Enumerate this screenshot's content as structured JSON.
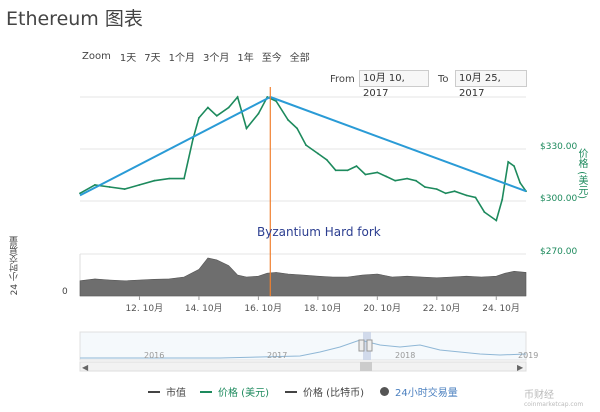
{
  "title": "Ethereum 图表",
  "zoom": {
    "label": "Zoom",
    "buttons": [
      "1天",
      "7天",
      "1个月",
      "3个月",
      "1年",
      "至今",
      "全部"
    ]
  },
  "range": {
    "from_label": "From",
    "from_value": "10月 10, 2017",
    "to_label": "To",
    "to_value": "10月 25, 2017"
  },
  "axes": {
    "price_title": "价格 (美元)",
    "volume_title": "24 小时交易量",
    "volume_zero": "0",
    "price_ticks": [
      "$330.00",
      "$300.00",
      "$270.00"
    ],
    "date_ticks": [
      "12. 10月",
      "14. 10月",
      "16. 10月",
      "18. 10月",
      "20. 10月",
      "22. 10月",
      "24. 10月"
    ]
  },
  "annotation": "Byzantium Hard fork",
  "navigator": {
    "year_labels": [
      "2016",
      "2017",
      "2018",
      "2019"
    ]
  },
  "legend": [
    {
      "icon": "line-icon",
      "label": "市值"
    },
    {
      "icon": "line-icon",
      "label": "价格 (美元)",
      "color": "#1d8a5d"
    },
    {
      "icon": "line-icon",
      "label": "价格 (比特币)"
    },
    {
      "icon": "circle-icon",
      "label": "24小时交易量",
      "color": "#4a7fbf"
    }
  ],
  "watermark": {
    "main": "币财经",
    "sub": "coinmarketcap.com"
  },
  "colors": {
    "price_line": "#1d8a5d",
    "trend_line": "#2a9bd6",
    "fork_line": "#f08030",
    "volume_fill": "#6e6e6e",
    "annotation_text": "#2c3e90"
  },
  "chart_data": {
    "type": "line",
    "x_unit": "date (Oct 2017)",
    "series": [
      {
        "name": "价格 (美元)",
        "x": [
          10.0,
          10.5,
          11.0,
          11.5,
          12.0,
          12.5,
          13.0,
          13.5,
          13.8,
          14.0,
          14.3,
          14.6,
          15.0,
          15.3,
          15.6,
          16.0,
          16.3,
          16.6,
          17.0,
          17.3,
          17.6,
          18.0,
          18.3,
          18.6,
          19.0,
          19.3,
          19.6,
          20.0,
          20.3,
          20.6,
          21.0,
          21.3,
          21.6,
          22.0,
          22.3,
          22.6,
          23.0,
          23.3,
          23.6,
          24.0,
          24.2,
          24.4,
          24.6,
          24.8,
          25.0
        ],
        "values": [
          299,
          303,
          302,
          301,
          303,
          305,
          306,
          306,
          325,
          335,
          340,
          336,
          340,
          345,
          330,
          337,
          345,
          343,
          334,
          330,
          322,
          318,
          315,
          310,
          310,
          312,
          308,
          309,
          307,
          305,
          306,
          305,
          302,
          301,
          299,
          300,
          298,
          297,
          290,
          286,
          296,
          314,
          312,
          304,
          300
        ]
      },
      {
        "name": "24小时交易量",
        "x": [
          10.0,
          10.5,
          11.0,
          11.5,
          12.0,
          12.5,
          13.0,
          13.5,
          14.0,
          14.3,
          14.6,
          15.0,
          15.3,
          15.6,
          16.0,
          16.3,
          16.6,
          17.0,
          17.5,
          18.0,
          18.5,
          19.0,
          19.5,
          20.0,
          20.5,
          21.0,
          21.5,
          22.0,
          22.5,
          23.0,
          23.5,
          24.0,
          24.3,
          24.6,
          25.0
        ],
        "values": [
          0.4,
          0.45,
          0.42,
          0.4,
          0.42,
          0.44,
          0.45,
          0.5,
          0.7,
          1.0,
          0.95,
          0.8,
          0.55,
          0.5,
          0.52,
          0.6,
          0.62,
          0.58,
          0.55,
          0.52,
          0.5,
          0.5,
          0.55,
          0.58,
          0.5,
          0.52,
          0.5,
          0.48,
          0.5,
          0.52,
          0.5,
          0.52,
          0.6,
          0.65,
          0.62
        ]
      }
    ],
    "trend_lines": [
      {
        "x": [
          10.0,
          16.4
        ],
        "values": [
          298,
          345
        ]
      },
      {
        "x": [
          16.4,
          25.0
        ],
        "values": [
          345,
          300
        ]
      }
    ],
    "events": [
      {
        "x": 16.4,
        "label": "Byzantium Hard fork"
      }
    ],
    "ylim": [
      270,
      345
    ],
    "xlim": [
      10.0,
      25.0
    ],
    "grid": true
  }
}
